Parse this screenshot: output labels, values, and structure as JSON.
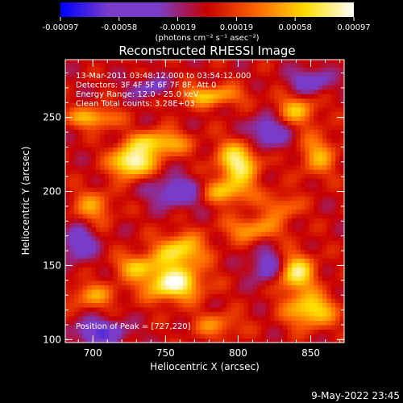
{
  "colorbar": {
    "ticks": [
      "-0.00097",
      "-0.00058",
      "-0.00019",
      "0.00019",
      "0.00058",
      "0.00097"
    ],
    "units": "(photons cm⁻² s⁻¹ asec⁻²)"
  },
  "chart_data": {
    "type": "heatmap",
    "title": "Reconstructed RHESSI Image",
    "xlabel": "Heliocentric X (arcsec)",
    "ylabel": "Heliocentric Y (arcsec)",
    "xlim": [
      681,
      873
    ],
    "ylim": [
      98,
      289
    ],
    "xticks": [
      700,
      750,
      800,
      850
    ],
    "yticks": [
      100,
      150,
      200,
      250
    ],
    "value_range": [
      -0.00097,
      0.00097
    ],
    "colormap_stops": [
      "#0000ff",
      "#7a3cc8",
      "#7a3cc8",
      "#c80000",
      "#ff6400",
      "#ffdc00",
      "#ffffff"
    ],
    "peak": [
      727,
      220
    ],
    "annotations": [
      "13-Mar-2011 03:48:12.000 to 03:54:12.000",
      "Detectors: 3F 4F 5F 6F 7F 8F, Att 0",
      "Energy Range: 12.0 - 25.0 keV",
      "Clean     Total counts: 3.28E+03"
    ],
    "peak_label": "Position of Peak = [727,220]",
    "blobs": [
      {
        "x": 727,
        "y": 220,
        "sx": 10,
        "sy": 7,
        "a": 1.0
      },
      {
        "x": 745,
        "y": 233,
        "sx": 14,
        "sy": 6,
        "a": 0.7
      },
      {
        "x": 700,
        "y": 250,
        "sx": 12,
        "sy": 5,
        "a": 0.6
      },
      {
        "x": 780,
        "y": 265,
        "sx": 16,
        "sy": 5,
        "a": 0.6
      },
      {
        "x": 800,
        "y": 220,
        "sx": 10,
        "sy": 10,
        "a": 0.85
      },
      {
        "x": 790,
        "y": 200,
        "sx": 14,
        "sy": 6,
        "a": 0.6
      },
      {
        "x": 840,
        "y": 255,
        "sx": 10,
        "sy": 7,
        "a": 0.55
      },
      {
        "x": 855,
        "y": 225,
        "sx": 9,
        "sy": 10,
        "a": 0.5
      },
      {
        "x": 760,
        "y": 160,
        "sx": 12,
        "sy": 8,
        "a": 0.75
      },
      {
        "x": 755,
        "y": 138,
        "sx": 14,
        "sy": 8,
        "a": 0.95
      },
      {
        "x": 730,
        "y": 150,
        "sx": 10,
        "sy": 6,
        "a": 0.55
      },
      {
        "x": 700,
        "y": 130,
        "sx": 12,
        "sy": 6,
        "a": 0.45
      },
      {
        "x": 840,
        "y": 145,
        "sx": 9,
        "sy": 9,
        "a": 0.8
      },
      {
        "x": 850,
        "y": 120,
        "sx": 12,
        "sy": 8,
        "a": 0.75
      },
      {
        "x": 810,
        "y": 175,
        "sx": 14,
        "sy": 6,
        "a": 0.5
      },
      {
        "x": 700,
        "y": 190,
        "sx": 10,
        "sy": 8,
        "a": 0.45
      },
      {
        "x": 785,
        "y": 110,
        "sx": 12,
        "sy": 6,
        "a": 0.4
      },
      {
        "x": 830,
        "y": 190,
        "sx": 9,
        "sy": 6,
        "a": 0.4
      }
    ],
    "minima": [
      {
        "x": 760,
        "y": 200,
        "sx": 14,
        "sy": 7,
        "a": 0.6
      },
      {
        "x": 705,
        "y": 105,
        "sx": 12,
        "sy": 6,
        "a": 0.7
      },
      {
        "x": 820,
        "y": 240,
        "sx": 10,
        "sy": 8,
        "a": 0.55
      },
      {
        "x": 850,
        "y": 275,
        "sx": 10,
        "sy": 6,
        "a": 0.5
      },
      {
        "x": 690,
        "y": 165,
        "sx": 8,
        "sy": 8,
        "a": 0.55
      },
      {
        "x": 820,
        "y": 150,
        "sx": 8,
        "sy": 8,
        "a": 0.5
      },
      {
        "x": 740,
        "y": 270,
        "sx": 10,
        "sy": 5,
        "a": 0.4
      }
    ]
  },
  "footer_date": "9-May-2022 23:45"
}
